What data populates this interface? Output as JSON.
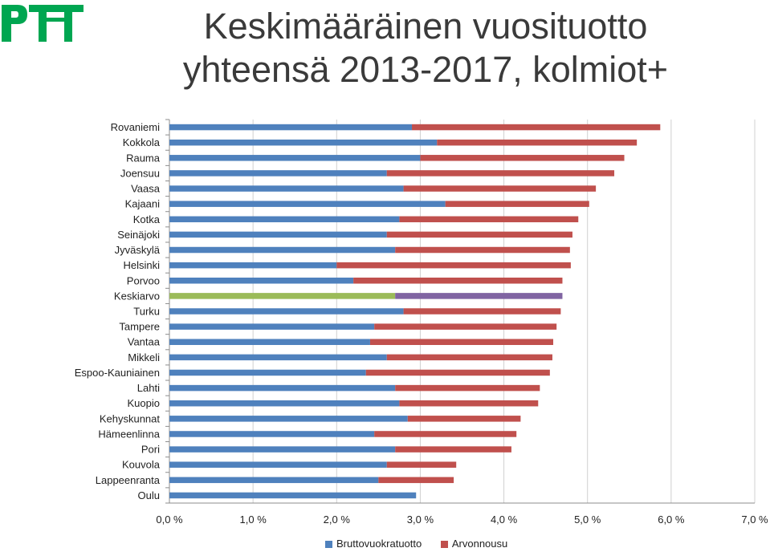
{
  "logo": {
    "text": "PTT",
    "color": "#00a651"
  },
  "title": {
    "line1": "Keskimääräinen vuosituotto",
    "line2": "yhteensä 2013-2017, kolmiot+"
  },
  "chart_data": {
    "type": "bar",
    "orientation": "horizontal",
    "stacked": true,
    "categories": [
      "Rovaniemi",
      "Kokkola",
      "Rauma",
      "Joensuu",
      "Vaasa",
      "Kajaani",
      "Kotka",
      "Seinäjoki",
      "Jyväskylä",
      "Helsinki",
      "Porvoo",
      "Keskiarvo",
      "Turku",
      "Tampere",
      "Vantaa",
      "Mikkeli",
      "Espoo-Kauniainen",
      "Lahti",
      "Kuopio",
      "Kehyskunnat",
      "Hämeenlinna",
      "Pori",
      "Kouvola",
      "Lappeenranta",
      "Oulu"
    ],
    "series": [
      {
        "name": "Bruttovuokratuotto",
        "color": "#4f81bd",
        "values": [
          2.9,
          3.2,
          3.0,
          2.6,
          2.8,
          3.3,
          2.75,
          2.6,
          2.7,
          2.0,
          2.2,
          2.7,
          2.8,
          2.45,
          2.4,
          2.6,
          2.35,
          2.7,
          2.75,
          2.85,
          2.45,
          2.7,
          2.6,
          2.5,
          2.95
        ]
      },
      {
        "name": "Arvonnousu",
        "color": "#c0504d",
        "values": [
          2.97,
          2.39,
          2.44,
          2.72,
          2.3,
          1.72,
          2.14,
          2.22,
          2.09,
          2.8,
          2.5,
          2.0,
          1.88,
          2.18,
          2.19,
          1.98,
          2.2,
          1.73,
          1.66,
          1.35,
          1.7,
          1.39,
          0.83,
          0.9,
          0.0
        ]
      }
    ],
    "highlight": {
      "category": "Keskiarvo",
      "colors": [
        "#9bbb59",
        "#8064a2"
      ]
    },
    "x_ticks": [
      "0,0 %",
      "1,0 %",
      "2,0 %",
      "3,0 %",
      "4,0 %",
      "5,0 %",
      "6,0 %",
      "7,0 %"
    ],
    "xlim": [
      0,
      7
    ],
    "grid": "vertical",
    "legend_position": "bottom"
  }
}
